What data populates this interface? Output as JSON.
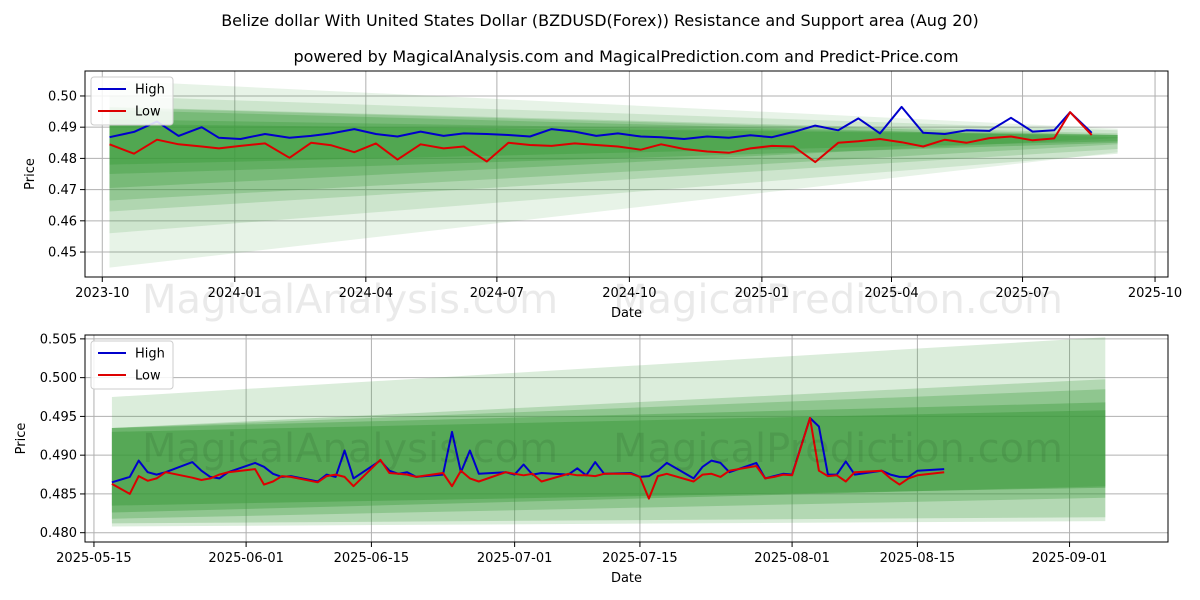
{
  "title": "Belize dollar With United States Dollar (BZDUSD(Forex)) Resistance and Support area (Aug 20)",
  "subtitle": "powered by MagicalAnalysis.com and MagicalPrediction.com and Predict-Price.com",
  "watermarks": [
    "MagicalAnalysis.com",
    "MagicalPrediction.com"
  ],
  "colors": {
    "high": "#0000cc",
    "low": "#dd0000",
    "band": "#3a9a3a",
    "grid": "#b0b0b0"
  },
  "chart_data": [
    {
      "type": "line",
      "xlabel": "Date",
      "ylabel": "Price",
      "x_range": [
        "2023-09-19",
        "2025-10-10"
      ],
      "ylim": [
        0.442,
        0.508
      ],
      "x_ticks": [
        "2023-10",
        "2024-01",
        "2024-04",
        "2024-07",
        "2024-10",
        "2025-01",
        "2025-04",
        "2025-07",
        "2025-10"
      ],
      "y_ticks": [
        0.45,
        0.46,
        0.47,
        0.48,
        0.49,
        0.5
      ],
      "y_tick_labels": [
        "0.45",
        "0.46",
        "0.47",
        "0.48",
        "0.49",
        "0.50"
      ],
      "grid": true,
      "legend": {
        "position": "top-left",
        "entries": [
          "High",
          "Low"
        ]
      },
      "bands": {
        "start": "2023-10-06",
        "end": "2025-09-05",
        "items": [
          {
            "y0": [
              0.445,
              0.482
            ],
            "y1": [
              0.505,
              0.4895
            ],
            "opacity": 0.12
          },
          {
            "y0": [
              0.456,
              0.4815
            ],
            "y1": [
              0.5,
              0.489
            ],
            "opacity": 0.15
          },
          {
            "y0": [
              0.463,
              0.483
            ],
            "y1": [
              0.4965,
              0.488
            ],
            "opacity": 0.2
          },
          {
            "y0": [
              0.4665,
              0.4845
            ],
            "y1": [
              0.4963,
              0.4875
            ],
            "opacity": 0.25
          },
          {
            "y0": [
              0.4705,
              0.4865
            ],
            "y1": [
              0.4955,
              0.4868
            ],
            "opacity": 0.3
          },
          {
            "y0": [
              0.475,
              0.485
            ],
            "y1": [
              0.4925,
              0.4875
            ],
            "opacity": 0.35
          },
          {
            "y0": [
              0.478,
              0.4855
            ],
            "y1": [
              0.491,
              0.4875
            ],
            "opacity": 0.4
          }
        ]
      },
      "series": [
        {
          "name": "High",
          "x": [
            "2023-10-06",
            "2023-10-23",
            "2023-11-08",
            "2023-11-23",
            "2023-12-09",
            "2023-12-21",
            "2024-01-05",
            "2024-01-22",
            "2024-02-08",
            "2024-02-23",
            "2024-03-08",
            "2024-03-24",
            "2024-04-08",
            "2024-04-23",
            "2024-05-09",
            "2024-05-25",
            "2024-06-08",
            "2024-06-24",
            "2024-07-09",
            "2024-07-24",
            "2024-08-08",
            "2024-08-24",
            "2024-09-08",
            "2024-09-23",
            "2024-10-09",
            "2024-10-23",
            "2024-11-08",
            "2024-11-24",
            "2024-12-09",
            "2024-12-24",
            "2025-01-08",
            "2025-01-23",
            "2025-02-07",
            "2025-02-23",
            "2025-03-09",
            "2025-03-24",
            "2025-04-08",
            "2025-04-23",
            "2025-05-08",
            "2025-05-23",
            "2025-06-08",
            "2025-06-23",
            "2025-07-08",
            "2025-07-23",
            "2025-08-03",
            "2025-08-18"
          ],
          "values": [
            0.4868,
            0.4885,
            0.4918,
            0.4872,
            0.49,
            0.4866,
            0.4862,
            0.4878,
            0.4866,
            0.4872,
            0.488,
            0.4894,
            0.4878,
            0.487,
            0.4886,
            0.4872,
            0.488,
            0.4878,
            0.4875,
            0.487,
            0.4894,
            0.4886,
            0.4872,
            0.488,
            0.487,
            0.4868,
            0.4862,
            0.487,
            0.4866,
            0.4874,
            0.4868,
            0.4885,
            0.4905,
            0.489,
            0.4928,
            0.488,
            0.4965,
            0.4882,
            0.4878,
            0.489,
            0.4888,
            0.493,
            0.4886,
            0.489,
            0.4948,
            0.4882
          ]
        },
        {
          "name": "Low",
          "x": [
            "2023-10-06",
            "2023-10-23",
            "2023-11-08",
            "2023-11-23",
            "2023-12-09",
            "2023-12-21",
            "2024-01-05",
            "2024-01-22",
            "2024-02-08",
            "2024-02-23",
            "2024-03-08",
            "2024-03-24",
            "2024-04-08",
            "2024-04-23",
            "2024-05-09",
            "2024-05-25",
            "2024-06-08",
            "2024-06-24",
            "2024-07-09",
            "2024-07-24",
            "2024-08-08",
            "2024-08-24",
            "2024-09-08",
            "2024-09-23",
            "2024-10-09",
            "2024-10-23",
            "2024-11-08",
            "2024-11-24",
            "2024-12-09",
            "2024-12-24",
            "2025-01-08",
            "2025-01-23",
            "2025-02-07",
            "2025-02-23",
            "2025-03-09",
            "2025-03-24",
            "2025-04-08",
            "2025-04-23",
            "2025-05-08",
            "2025-05-23",
            "2025-06-08",
            "2025-06-23",
            "2025-07-08",
            "2025-07-23",
            "2025-08-03",
            "2025-08-18"
          ],
          "values": [
            0.4845,
            0.4815,
            0.486,
            0.4845,
            0.4838,
            0.4832,
            0.484,
            0.4848,
            0.4802,
            0.485,
            0.4842,
            0.482,
            0.4848,
            0.4796,
            0.4845,
            0.4832,
            0.4838,
            0.479,
            0.485,
            0.4843,
            0.484,
            0.4848,
            0.4843,
            0.4838,
            0.4828,
            0.4845,
            0.483,
            0.4822,
            0.4818,
            0.4832,
            0.484,
            0.4838,
            0.4788,
            0.485,
            0.4855,
            0.4862,
            0.4852,
            0.4838,
            0.486,
            0.485,
            0.4865,
            0.487,
            0.4858,
            0.4864,
            0.4948,
            0.4875
          ]
        }
      ]
    },
    {
      "type": "line",
      "xlabel": "Date",
      "ylabel": "Price",
      "x_range": [
        "2025-05-14",
        "2025-09-12"
      ],
      "ylim": [
        0.4788,
        0.5055
      ],
      "x_ticks": [
        "2025-05-15",
        "2025-06-01",
        "2025-06-15",
        "2025-07-01",
        "2025-07-15",
        "2025-08-01",
        "2025-08-15",
        "2025-09-01"
      ],
      "y_ticks": [
        0.48,
        0.485,
        0.49,
        0.495,
        0.5,
        0.505
      ],
      "y_tick_labels": [
        "0.480",
        "0.485",
        "0.490",
        "0.495",
        "0.500",
        "0.505"
      ],
      "grid": true,
      "legend": {
        "position": "top-left",
        "entries": [
          "High",
          "Low"
        ]
      },
      "bands": {
        "start": "2025-05-17",
        "end": "2025-09-05",
        "items": [
          {
            "y0": [
              0.4808,
              0.4815
            ],
            "y1": [
              0.4975,
              0.5052
            ],
            "opacity": 0.18
          },
          {
            "y0": [
              0.4812,
              0.482
            ],
            "y1": [
              0.4935,
              0.4998
            ],
            "opacity": 0.25
          },
          {
            "y0": [
              0.4818,
              0.4845
            ],
            "y1": [
              0.4935,
              0.4985
            ],
            "opacity": 0.3
          },
          {
            "y0": [
              0.4826,
              0.486
            ],
            "y1": [
              0.4935,
              0.4968
            ],
            "opacity": 0.38
          },
          {
            "y0": [
              0.4835,
              0.4858
            ],
            "y1": [
              0.493,
              0.4958
            ],
            "opacity": 0.45
          }
        ]
      },
      "series": [
        {
          "name": "High",
          "x": [
            "2025-05-17",
            "2025-05-19",
            "2025-05-20",
            "2025-05-21",
            "2025-05-22",
            "2025-05-23",
            "2025-05-26",
            "2025-05-27",
            "2025-05-28",
            "2025-05-29",
            "2025-05-30",
            "2025-06-02",
            "2025-06-03",
            "2025-06-04",
            "2025-06-05",
            "2025-06-06",
            "2025-06-09",
            "2025-06-10",
            "2025-06-11",
            "2025-06-12",
            "2025-06-13",
            "2025-06-16",
            "2025-06-17",
            "2025-06-18",
            "2025-06-19",
            "2025-06-20",
            "2025-06-23",
            "2025-06-24",
            "2025-06-25",
            "2025-06-26",
            "2025-06-27",
            "2025-06-30",
            "2025-07-01",
            "2025-07-02",
            "2025-07-03",
            "2025-07-04",
            "2025-07-07",
            "2025-07-08",
            "2025-07-09",
            "2025-07-10",
            "2025-07-11",
            "2025-07-14",
            "2025-07-15",
            "2025-07-16",
            "2025-07-17",
            "2025-07-18",
            "2025-07-21",
            "2025-07-22",
            "2025-07-23",
            "2025-07-24",
            "2025-07-25",
            "2025-07-28",
            "2025-07-29",
            "2025-07-30",
            "2025-07-31",
            "2025-08-01",
            "2025-08-03",
            "2025-08-04",
            "2025-08-05",
            "2025-08-06",
            "2025-08-07",
            "2025-08-08",
            "2025-08-11",
            "2025-08-12",
            "2025-08-13",
            "2025-08-14",
            "2025-08-15",
            "2025-08-18"
          ],
          "values": [
            0.4865,
            0.4872,
            0.4893,
            0.4878,
            0.4875,
            0.4878,
            0.4891,
            0.488,
            0.4872,
            0.487,
            0.4878,
            0.489,
            0.4885,
            0.4876,
            0.4872,
            0.4873,
            0.4866,
            0.4875,
            0.4872,
            0.4906,
            0.487,
            0.4893,
            0.488,
            0.4876,
            0.4878,
            0.4872,
            0.4875,
            0.493,
            0.4878,
            0.4906,
            0.4876,
            0.4878,
            0.4875,
            0.4888,
            0.4875,
            0.4877,
            0.4875,
            0.4883,
            0.4874,
            0.4891,
            0.4876,
            0.4877,
            0.4872,
            0.4873,
            0.488,
            0.489,
            0.487,
            0.4885,
            0.4893,
            0.489,
            0.4878,
            0.489,
            0.487,
            0.4873,
            0.4876,
            0.4875,
            0.4948,
            0.4937,
            0.4875,
            0.4875,
            0.4892,
            0.4875,
            0.488,
            0.4875,
            0.4872,
            0.4872,
            0.488,
            0.4882
          ]
        },
        {
          "name": "Low",
          "x": [
            "2025-05-17",
            "2025-05-19",
            "2025-05-20",
            "2025-05-21",
            "2025-05-22",
            "2025-05-23",
            "2025-05-26",
            "2025-05-27",
            "2025-05-28",
            "2025-05-29",
            "2025-05-30",
            "2025-06-02",
            "2025-06-03",
            "2025-06-04",
            "2025-06-05",
            "2025-06-06",
            "2025-06-09",
            "2025-06-10",
            "2025-06-11",
            "2025-06-12",
            "2025-06-13",
            "2025-06-16",
            "2025-06-17",
            "2025-06-18",
            "2025-06-19",
            "2025-06-20",
            "2025-06-23",
            "2025-06-24",
            "2025-06-25",
            "2025-06-26",
            "2025-06-27",
            "2025-06-30",
            "2025-07-01",
            "2025-07-02",
            "2025-07-03",
            "2025-07-04",
            "2025-07-07",
            "2025-07-08",
            "2025-07-09",
            "2025-07-10",
            "2025-07-11",
            "2025-07-14",
            "2025-07-15",
            "2025-07-16",
            "2025-07-17",
            "2025-07-18",
            "2025-07-21",
            "2025-07-22",
            "2025-07-23",
            "2025-07-24",
            "2025-07-25",
            "2025-07-28",
            "2025-07-29",
            "2025-07-30",
            "2025-07-31",
            "2025-08-01",
            "2025-08-03",
            "2025-08-04",
            "2025-08-05",
            "2025-08-06",
            "2025-08-07",
            "2025-08-08",
            "2025-08-11",
            "2025-08-12",
            "2025-08-13",
            "2025-08-14",
            "2025-08-15",
            "2025-08-18"
          ],
          "values": [
            0.4863,
            0.485,
            0.4873,
            0.4867,
            0.487,
            0.4878,
            0.4871,
            0.4868,
            0.487,
            0.4875,
            0.4878,
            0.4882,
            0.4862,
            0.4866,
            0.4873,
            0.4872,
            0.4865,
            0.4873,
            0.4875,
            0.4872,
            0.486,
            0.4894,
            0.4877,
            0.4876,
            0.4875,
            0.4872,
            0.4877,
            0.486,
            0.488,
            0.487,
            0.4866,
            0.4878,
            0.4876,
            0.4874,
            0.4876,
            0.4866,
            0.4876,
            0.4874,
            0.4874,
            0.4873,
            0.4876,
            0.4876,
            0.4872,
            0.4844,
            0.4873,
            0.4876,
            0.4866,
            0.4875,
            0.4876,
            0.4872,
            0.488,
            0.4886,
            0.487,
            0.4872,
            0.4875,
            0.4874,
            0.4948,
            0.488,
            0.4873,
            0.4874,
            0.4866,
            0.4878,
            0.488,
            0.487,
            0.4862,
            0.487,
            0.4874,
            0.4878
          ]
        }
      ]
    }
  ]
}
